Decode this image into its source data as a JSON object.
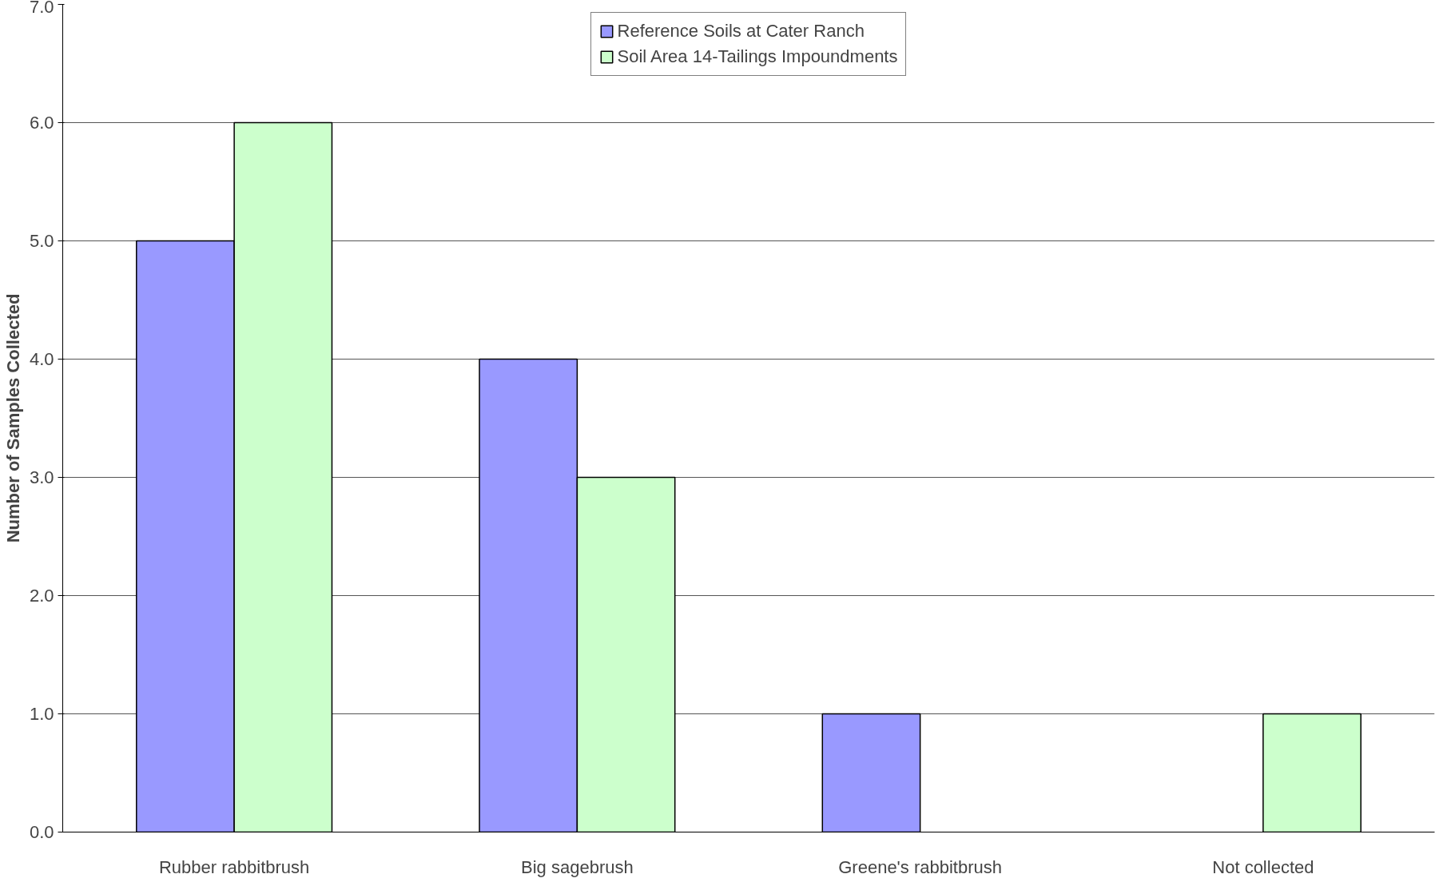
{
  "chart_data": {
    "type": "bar",
    "ylabel": "Number of Samples Collected",
    "categories": [
      "Rubber rabbitbrush",
      "Big sagebrush",
      "Greene's rabbitbrush",
      "Not collected"
    ],
    "series": [
      {
        "name": "Reference Soils at Cater Ranch",
        "color": "#9999ff",
        "values": [
          5,
          4,
          1,
          null
        ]
      },
      {
        "name": "Soil Area 14-Tailings Impoundments",
        "color": "#ccffcc",
        "values": [
          6,
          3,
          null,
          1
        ]
      }
    ],
    "ylim": [
      0,
      7
    ],
    "yticks": [
      {
        "value": 0,
        "label": "0.0"
      },
      {
        "value": 1,
        "label": "1.0"
      },
      {
        "value": 2,
        "label": "2.0"
      },
      {
        "value": 3,
        "label": "3.0"
      },
      {
        "value": 4,
        "label": "4.0"
      },
      {
        "value": 5,
        "label": "5.0"
      },
      {
        "value": 6,
        "label": "6.0"
      },
      {
        "value": 7,
        "label": "7.0"
      }
    ],
    "grid": "y",
    "legend": "top"
  }
}
